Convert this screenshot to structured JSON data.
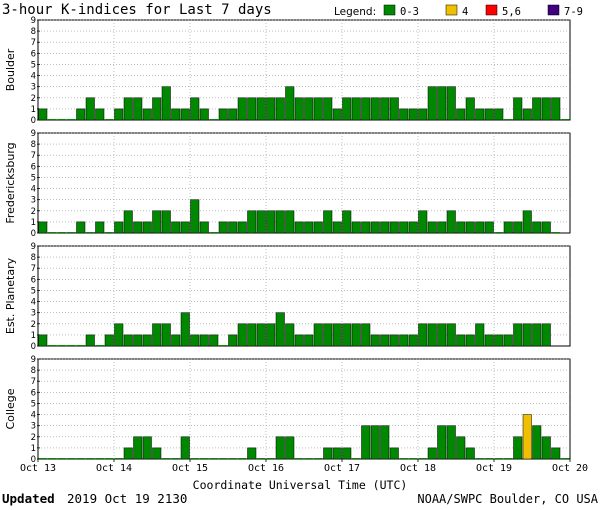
{
  "chart_data": {
    "type": "bar",
    "title": "3-hour K-indices for Last 7 days",
    "legend": {
      "label": "Legend:",
      "placement": "top-right",
      "items": [
        {
          "label": "0-3",
          "color": "#008800"
        },
        {
          "label": "4",
          "color": "#f0c000"
        },
        {
          "label": "5,6",
          "color": "#ff0000"
        },
        {
          "label": "7-9",
          "color": "#400080"
        }
      ]
    },
    "xlabel": "Coordinate Universal Time (UTC)",
    "x_ticks": [
      "Oct 13",
      "Oct 14",
      "Oct 15",
      "Oct 16",
      "Oct 17",
      "Oct 18",
      "Oct 19",
      "Oct 20"
    ],
    "y_ticks": [
      "0",
      "1",
      "2",
      "3",
      "4",
      "5",
      "6",
      "7",
      "8",
      "9"
    ],
    "ylim": [
      0,
      9
    ],
    "grid": "dotted horizontal",
    "bins_per_day": 8,
    "panels": [
      {
        "name": "Boulder",
        "values": [
          1,
          0,
          0,
          0,
          1,
          2,
          1,
          0,
          1,
          2,
          2,
          1,
          2,
          3,
          1,
          1,
          2,
          1,
          0,
          1,
          1,
          2,
          2,
          2,
          2,
          2,
          3,
          2,
          2,
          2,
          2,
          1,
          2,
          2,
          2,
          2,
          2,
          2,
          1,
          1,
          1,
          3,
          3,
          3,
          1,
          2,
          1,
          1,
          1,
          0,
          2,
          1,
          2,
          2,
          2,
          0
        ]
      },
      {
        "name": "Fredericksburg",
        "values": [
          1,
          0,
          0,
          0,
          1,
          0,
          1,
          0,
          1,
          2,
          1,
          1,
          2,
          2,
          1,
          1,
          3,
          1,
          0,
          1,
          1,
          1,
          2,
          2,
          2,
          2,
          2,
          1,
          1,
          1,
          2,
          1,
          2,
          1,
          1,
          1,
          1,
          1,
          1,
          1,
          2,
          1,
          1,
          2,
          1,
          1,
          1,
          1,
          0,
          1,
          1,
          2,
          1,
          1,
          0,
          null
        ]
      },
      {
        "name": "Est. Planetary",
        "values": [
          1,
          0,
          0,
          0,
          0,
          1,
          0,
          1,
          2,
          1,
          1,
          1,
          2,
          2,
          1,
          3,
          1,
          1,
          1,
          0,
          1,
          2,
          2,
          2,
          2,
          3,
          2,
          1,
          1,
          2,
          2,
          2,
          2,
          2,
          2,
          1,
          1,
          1,
          1,
          1,
          2,
          2,
          2,
          2,
          1,
          1,
          2,
          1,
          1,
          1,
          2,
          2,
          2,
          2,
          null,
          null
        ]
      },
      {
        "name": "College",
        "values": [
          0,
          0,
          0,
          0,
          0,
          0,
          0,
          0,
          0,
          1,
          2,
          2,
          1,
          0,
          0,
          2,
          0,
          0,
          0,
          0,
          0,
          0,
          1,
          0,
          0,
          2,
          2,
          0,
          0,
          0,
          1,
          1,
          1,
          0,
          3,
          3,
          3,
          1,
          0,
          0,
          0,
          1,
          3,
          3,
          2,
          1,
          0,
          0,
          0,
          0,
          2,
          4,
          3,
          2,
          1,
          0
        ]
      }
    ]
  },
  "footer": {
    "updated_label": "Updated",
    "updated_value": "2019 Oct 19 2130",
    "credit": "NOAA/SWPC Boulder, CO USA"
  }
}
